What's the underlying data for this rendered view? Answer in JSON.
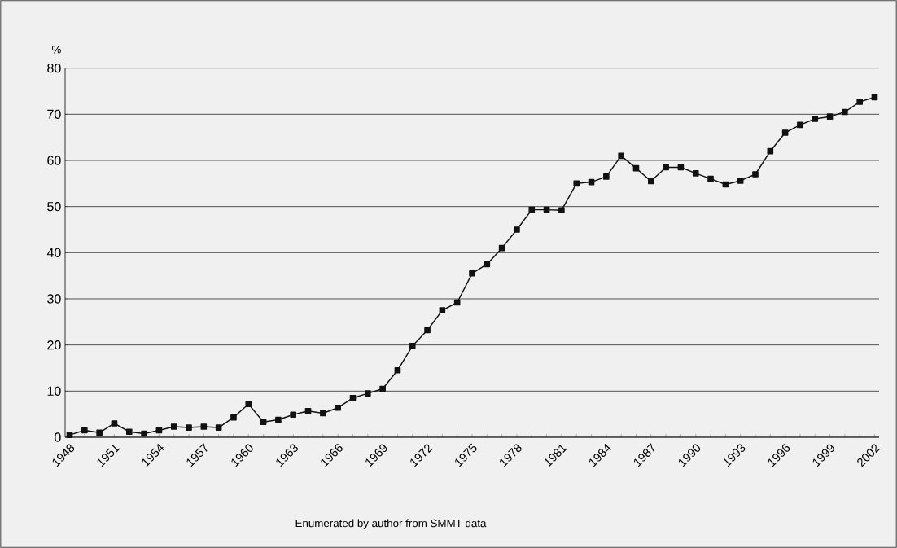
{
  "chart_data": {
    "type": "line",
    "ylabel": "%",
    "categories": [
      "1948",
      null,
      null,
      "1951",
      null,
      null,
      "1954",
      null,
      null,
      "1957",
      null,
      null,
      "1960",
      null,
      null,
      "1963",
      null,
      null,
      "1966",
      null,
      null,
      "1969",
      null,
      null,
      "1972",
      null,
      null,
      "1975",
      null,
      null,
      "1978",
      null,
      null,
      "1981",
      null,
      null,
      "1984",
      null,
      null,
      "1987",
      null,
      null,
      "1990",
      null,
      null,
      "1993",
      null,
      null,
      "1996",
      null,
      null,
      "1999",
      null,
      null,
      "2002"
    ],
    "values": [
      0.5,
      1.5,
      1.0,
      3.0,
      1.2,
      0.8,
      1.5,
      2.3,
      2.1,
      2.3,
      2.1,
      4.3,
      7.2,
      3.3,
      3.8,
      4.9,
      5.7,
      5.2,
      6.4,
      8.5,
      9.5,
      10.5,
      14.5,
      19.8,
      23.2,
      27.5,
      29.2,
      35.5,
      37.5,
      41,
      45,
      49.3,
      49.3,
      49.2,
      55,
      55.3,
      56.5,
      61,
      58.3,
      55.5,
      58.5,
      58.5,
      57.2,
      56,
      54.8,
      55.6,
      57,
      62,
      66,
      67.7,
      69,
      69.5,
      70.5,
      72.7,
      73.7
    ],
    "color": "#111111",
    "marker": "square",
    "line_style": "solid",
    "grid": "y",
    "ylim": [
      0,
      80
    ],
    "yticks": [
      0,
      10,
      20,
      30,
      40,
      50,
      60,
      70,
      80
    ],
    "annotations": [
      "Enumerated by author from SMMT data"
    ]
  }
}
